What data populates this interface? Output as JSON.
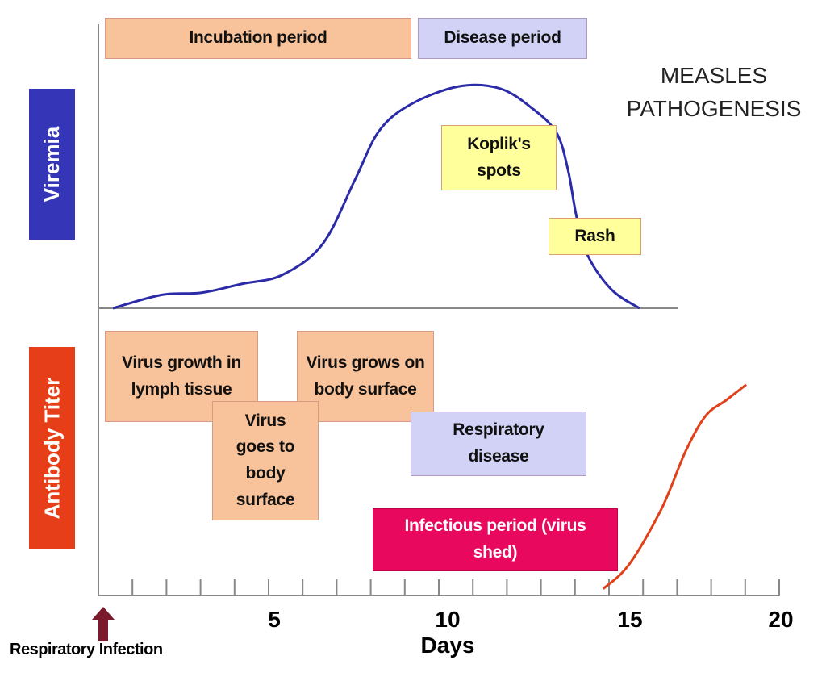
{
  "title": "MEASLES PATHOGENESIS",
  "side_labels": {
    "top": "Viremia",
    "bottom": "Antibody Titer"
  },
  "phases": {
    "incubation": "Incubation period",
    "disease": "Disease period"
  },
  "signs": {
    "kopliks": "Koplik's spots",
    "rash": "Rash"
  },
  "events": {
    "lymph": "Virus growth in lymph tissue",
    "goes_to_surface": "Virus goes to body surface",
    "grows_on_surface": "Virus grows on body surface",
    "respiratory_disease": "Respiratory disease",
    "infectious_period": "Infectious period (virus shed)"
  },
  "x_axis": {
    "label": "Days",
    "ticks": [
      "5",
      "10",
      "15",
      "20"
    ],
    "range": [
      0,
      20
    ],
    "minor_step": 1
  },
  "start_marker": "Respiratory Infection",
  "colors": {
    "viremia": "#2b2ba8",
    "antibody": "#e0401a",
    "viremia_label_bg": "#3535b8",
    "antibody_label_bg": "#e63e18",
    "arrow": "#7a1a2c",
    "infectious": "#e8085e"
  },
  "chart_data": {
    "type": "line",
    "xlabel": "Days",
    "series": [
      {
        "name": "Viremia",
        "points": [
          [
            0.43,
            0
          ],
          [
            1.85,
            0.06
          ],
          [
            3.03,
            0.07
          ],
          [
            4.22,
            0.11
          ],
          [
            5.4,
            0.15
          ],
          [
            6.59,
            0.29
          ],
          [
            7.54,
            0.58
          ],
          [
            8.25,
            0.8
          ],
          [
            9.19,
            0.92
          ],
          [
            10.6,
            1.0
          ],
          [
            11.8,
            0.99
          ],
          [
            12.75,
            0.9
          ],
          [
            13.46,
            0.79
          ],
          [
            13.8,
            0.62
          ],
          [
            14.05,
            0.41
          ],
          [
            14.4,
            0.23
          ],
          [
            15.1,
            0.08
          ],
          [
            15.9,
            0
          ]
        ]
      },
      {
        "name": "Antibody Titer",
        "points": [
          [
            14.83,
            0.03
          ],
          [
            15.59,
            0.14
          ],
          [
            16.54,
            0.39
          ],
          [
            17.25,
            0.65
          ],
          [
            17.84,
            0.81
          ],
          [
            18.44,
            0.88
          ],
          [
            19.03,
            0.95
          ]
        ]
      }
    ]
  }
}
